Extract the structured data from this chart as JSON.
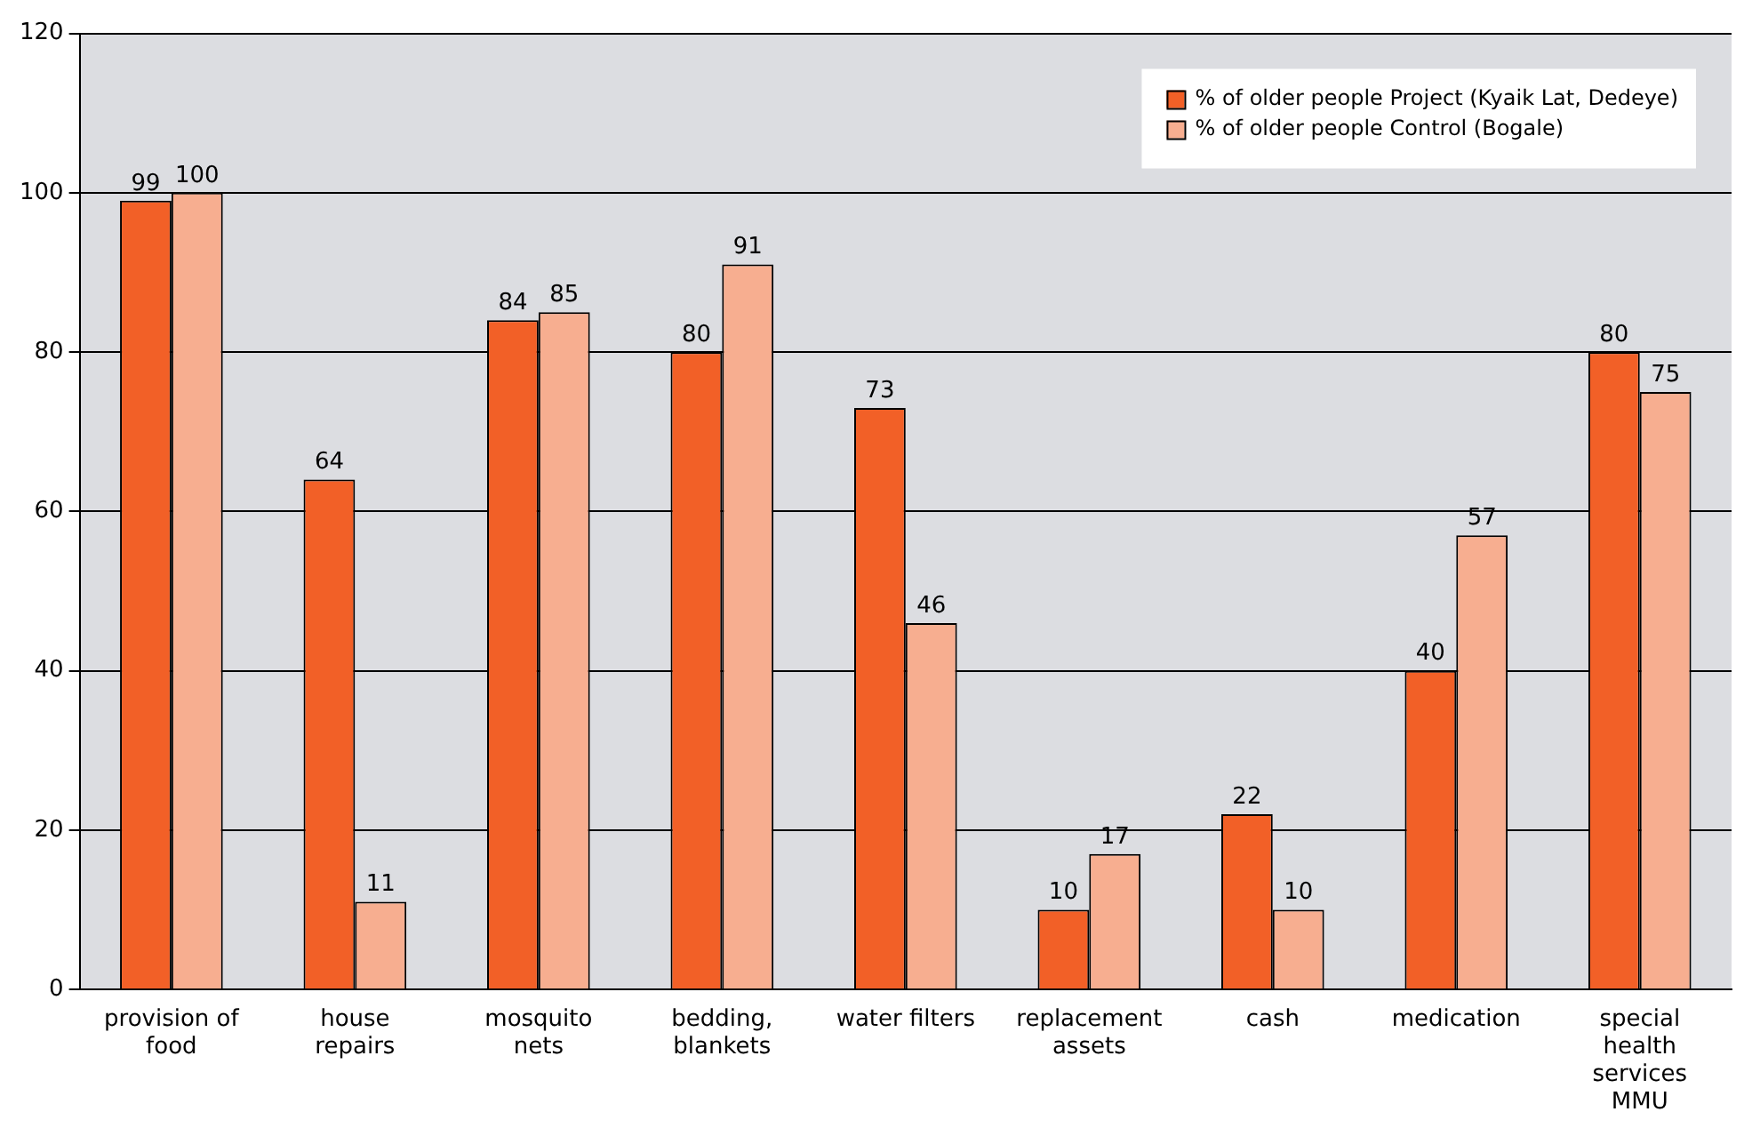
{
  "chart_data": {
    "type": "bar",
    "categories": [
      "provision of food",
      "house repairs",
      "mosquito nets",
      "bedding, blankets",
      "water filters",
      "replacement assets",
      "cash",
      "medication",
      "special health services MMU"
    ],
    "series": [
      {
        "name": "% of older people Project (Kyaik Lat, Dedeye)",
        "color": "#f26027",
        "values": [
          99,
          64,
          84,
          80,
          73,
          10,
          22,
          40,
          80
        ]
      },
      {
        "name": "% of older people Control (Bogale)",
        "color": "#f7ae90",
        "values": [
          100,
          11,
          85,
          91,
          46,
          17,
          10,
          57,
          75
        ]
      }
    ],
    "ylim": [
      0,
      120
    ],
    "yticks": [
      0,
      20,
      40,
      60,
      80,
      100,
      120
    ],
    "grid": "y",
    "legend": "top right",
    "data_labels": true
  }
}
